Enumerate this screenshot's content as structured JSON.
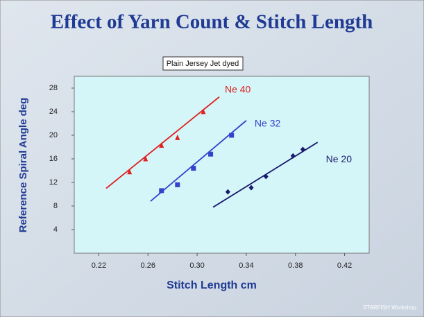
{
  "chart_data": {
    "type": "scatter",
    "title": "Effect of Yarn Count & Stitch Length",
    "subtitle": "Plain Jersey  Jet dyed",
    "x_label": "Stitch Length cm",
    "y_label": "Reference Spiral Angle deg",
    "footer": "STARFISH Workshop",
    "xlim": [
      0.2,
      0.44
    ],
    "xticks": [
      0.22,
      0.26,
      {
        "value": 0.3,
        "label": "0.30"
      },
      0.34,
      0.38,
      0.42
    ],
    "ylim": [
      0,
      30
    ],
    "yticks": [
      4,
      8,
      12,
      16,
      20,
      24,
      28
    ],
    "grid": false,
    "series": [
      {
        "name": "Ne 40",
        "color": "#e02020",
        "marker": "triangle",
        "x": [
          0.245,
          0.258,
          0.271,
          0.284,
          0.305
        ],
        "values": [
          13.8,
          16,
          18.3,
          19.6,
          24
        ],
        "trend_x": [
          0.226,
          0.318
        ],
        "trend_values": [
          11,
          26.5
        ]
      },
      {
        "name": "Ne 32",
        "color": "#3344cc",
        "marker": "square",
        "x": [
          0.271,
          0.284,
          0.297,
          0.311,
          0.328
        ],
        "values": [
          10.6,
          11.6,
          14.4,
          16.8,
          20
        ],
        "trend_x": [
          0.262,
          0.34
        ],
        "trend_values": [
          8.8,
          22.5
        ]
      },
      {
        "name": "Ne 20",
        "color": "#1a1a70",
        "marker": "diamond",
        "x": [
          0.325,
          0.344,
          0.356,
          0.378,
          0.386
        ],
        "values": [
          10.4,
          11.1,
          13,
          16.5,
          17.6
        ],
        "trend_x": [
          0.313,
          0.398
        ],
        "trend_values": [
          7.8,
          18.8
        ]
      }
    ]
  }
}
